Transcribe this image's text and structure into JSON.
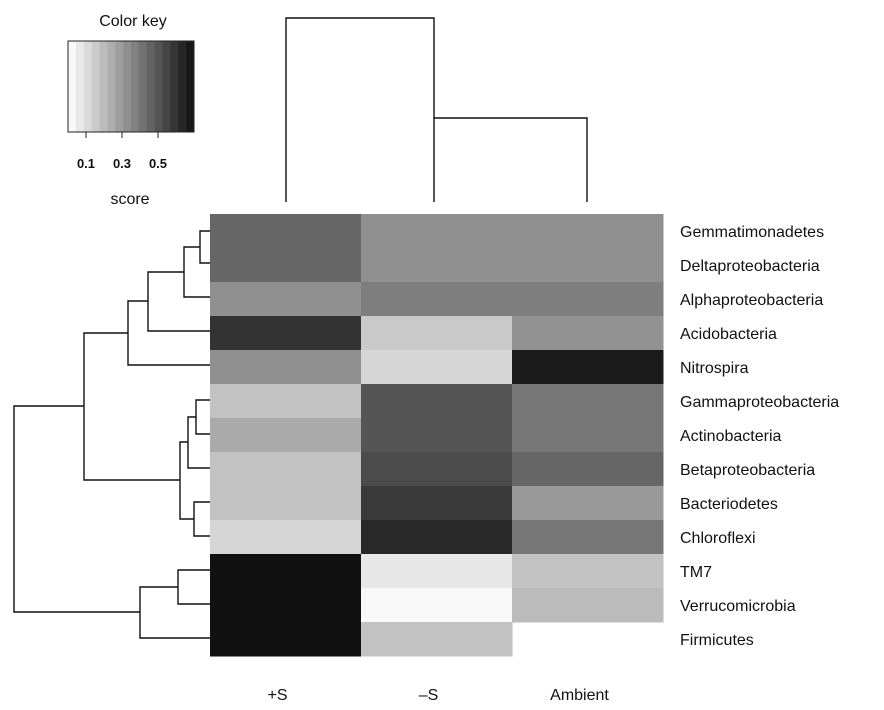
{
  "chart_data": {
    "type": "heatmap",
    "title": "",
    "xlabel": "",
    "ylabel": "",
    "columns": [
      "+S",
      "–S",
      "Ambient"
    ],
    "rows": [
      "Gemmatimonadetes",
      "Deltaproteobacteria",
      "Alphaproteobacteria",
      "Acidobacteria",
      "Nitrospira",
      "Gammaproteobacteria",
      "Actinobacteria",
      "Betaproteobacteria",
      "Bacteriodetes",
      "Chloroflexi",
      "TM7",
      "Verrucomicrobia",
      "Firmicutes"
    ],
    "values": [
      [
        0.45,
        0.33,
        0.33
      ],
      [
        0.45,
        0.33,
        0.33
      ],
      [
        0.33,
        0.38,
        0.38
      ],
      [
        0.6,
        0.16,
        0.32
      ],
      [
        0.33,
        0.12,
        0.67
      ],
      [
        0.18,
        0.5,
        0.4
      ],
      [
        0.25,
        0.5,
        0.4
      ],
      [
        0.18,
        0.53,
        0.45
      ],
      [
        0.18,
        0.58,
        0.3
      ],
      [
        0.12,
        0.63,
        0.4
      ],
      [
        0.8,
        0.07,
        0.18
      ],
      [
        0.85,
        0.02,
        0.2
      ],
      [
        0.85,
        0.18,
        null
      ]
    ],
    "color_key": {
      "title": "Color key",
      "label": "score",
      "ticks": [
        "0.1",
        "0.3",
        "0.5"
      ],
      "tick_values": [
        0.1,
        0.3,
        0.5
      ],
      "range": [
        0.0,
        0.7
      ],
      "steps": 16,
      "low_color": "#ffffff",
      "high_color": "#111111"
    },
    "column_dendrogram": "(+S,(–S,Ambient))",
    "row_dendrogram": "((((Gemmatimonadetes,Deltaproteobacteria),Alphaproteobacteria),Acidobacteria),Nitrospira),(((Gammaproteobacteria,Actinobacteria),Betaproteobacteria),(Bacteriodetes,Chloroflexi)),((TM7,Verrucomicrobia),Firmicutes)"
  }
}
